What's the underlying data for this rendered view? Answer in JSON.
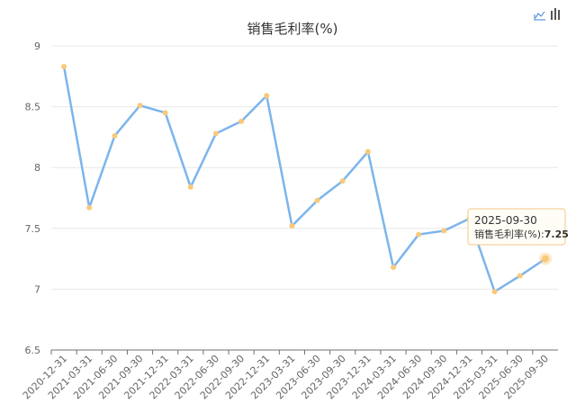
{
  "chart_data": {
    "type": "line",
    "title": "销售毛利率(%)",
    "categories": [
      "2020-12-31",
      "2021-03-31",
      "2021-06-30",
      "2021-09-30",
      "2021-12-31",
      "2022-03-31",
      "2022-06-30",
      "2022-09-30",
      "2022-12-31",
      "2023-03-31",
      "2023-06-30",
      "2023-09-30",
      "2023-12-31",
      "2024-03-31",
      "2024-06-30",
      "2024-09-30",
      "2024-12-31",
      "2025-03-31",
      "2025-06-30",
      "2025-09-30"
    ],
    "series": [
      {
        "name": "销售毛利率(%)",
        "color": "#7cb5ec",
        "marker_color": "#f9c97a",
        "values": [
          8.83,
          7.67,
          8.26,
          8.51,
          8.45,
          7.84,
          8.28,
          8.38,
          8.59,
          7.52,
          7.73,
          7.89,
          8.13,
          7.18,
          7.45,
          7.48,
          7.58,
          6.98,
          7.11,
          7.25
        ]
      }
    ],
    "ylim": [
      6.5,
      9
    ],
    "yticks": [
      6.5,
      7,
      7.5,
      8,
      8.5,
      9
    ],
    "grid": true,
    "tooltip": {
      "label": "销售毛利率(%):"
    }
  }
}
